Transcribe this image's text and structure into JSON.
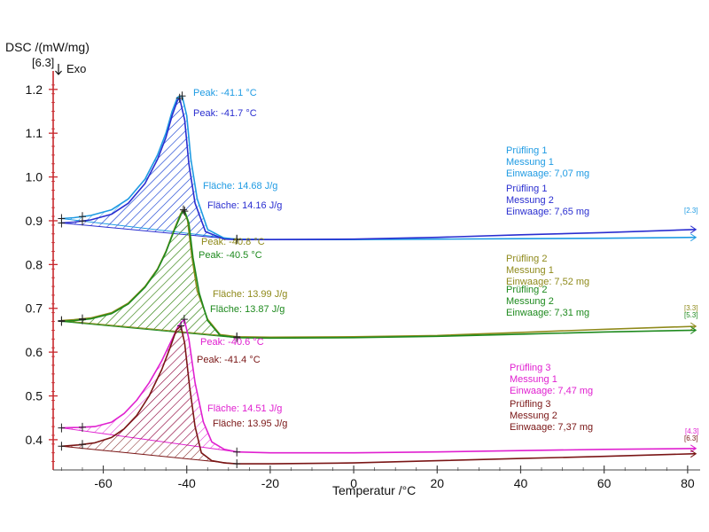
{
  "chart_data": {
    "type": "line",
    "ylabel": "DSC /(mW/mg)",
    "xlabel": "Temperatur /°C",
    "segment_marker": "[6.3]",
    "exo_label": "Exo",
    "xlim": [
      -72,
      83
    ],
    "ylim": [
      0.335,
      1.23
    ],
    "xticks": [
      -60,
      -40,
      -20,
      0,
      20,
      40,
      60,
      80
    ],
    "yticks": [
      0.4,
      0.5,
      0.6,
      0.7,
      0.8,
      0.9,
      1.0,
      1.1,
      1.2
    ],
    "xtick_labels": [
      "-60",
      "-40",
      "-20",
      "0",
      "20",
      "40",
      "60",
      "80"
    ],
    "ytick_labels": [
      "0.4",
      "0.5",
      "0.6",
      "0.7",
      "0.8",
      "0.9",
      "1.0",
      "1.1",
      "1.2"
    ],
    "colors": {
      "axis": "#c8282d"
    },
    "series": [
      {
        "name": "Prüfling 1 Messung 1",
        "color": "#1f9be3",
        "x": [
          -70,
          -67,
          -63,
          -58,
          -54,
          -50,
          -47,
          -45,
          -43.5,
          -42.2,
          -41.1,
          -40,
          -39,
          -37.5,
          -35,
          -31,
          -28,
          -20,
          0,
          20,
          40,
          60,
          82
        ],
        "values": [
          0.905,
          0.907,
          0.912,
          0.925,
          0.95,
          0.995,
          1.05,
          1.1,
          1.15,
          1.182,
          1.185,
          1.14,
          1.04,
          0.95,
          0.88,
          0.86,
          0.858,
          0.857,
          0.857,
          0.858,
          0.859,
          0.86,
          0.862
        ],
        "label_lines": [
          "Prüfling 1",
          "Messung 1",
          "Einwaage: 7,07 mg"
        ],
        "peak_label": "Peak: -41.1 °C",
        "area_label": "Fläche: 14.68 J/g",
        "end_marker": "[2.3]",
        "hatch_x": [
          -70,
          -28
        ]
      },
      {
        "name": "Prüfling 1 Messung 2",
        "color": "#2a2ed0",
        "x": [
          -70,
          -67,
          -63,
          -58,
          -54,
          -50,
          -47,
          -45,
          -43.5,
          -42.2,
          -41.7,
          -40.5,
          -39.5,
          -38,
          -35.5,
          -31,
          -28,
          -20,
          0,
          20,
          40,
          60,
          82
        ],
        "values": [
          0.895,
          0.897,
          0.902,
          0.915,
          0.94,
          0.985,
          1.04,
          1.09,
          1.14,
          1.175,
          1.18,
          1.13,
          1.03,
          0.94,
          0.875,
          0.858,
          0.857,
          0.857,
          0.858,
          0.862,
          0.868,
          0.873,
          0.88
        ],
        "label_lines": [
          "Prüfling 1",
          "Messung 2",
          "Einwaage: 7,65 mg"
        ],
        "peak_label": "Peak: -41.7 °C",
        "area_label": "Fläche: 14.16 J/g",
        "end_marker": "",
        "hatch_x": [
          -70,
          -28
        ]
      },
      {
        "name": "Prüfling 2 Messung 1",
        "color": "#8f8a1b",
        "x": [
          -70,
          -67,
          -63,
          -58,
          -54,
          -50,
          -47,
          -45,
          -43,
          -41.5,
          -40.8,
          -39.8,
          -38.8,
          -37.5,
          -35,
          -32,
          -28,
          -20,
          0,
          20,
          40,
          60,
          82
        ],
        "values": [
          0.672,
          0.674,
          0.678,
          0.69,
          0.712,
          0.75,
          0.79,
          0.83,
          0.88,
          0.915,
          0.925,
          0.9,
          0.82,
          0.74,
          0.675,
          0.64,
          0.635,
          0.634,
          0.635,
          0.638,
          0.645,
          0.652,
          0.659
        ],
        "label_lines": [
          "Prüfling 2",
          "Messung 1",
          "Einwaage: 7,52 mg"
        ],
        "peak_label": "Peak: -40.8 °C",
        "area_label": "Fläche: 13.99 J/g",
        "end_marker": "[3.3]",
        "hatch_x": [
          -70,
          -28
        ]
      },
      {
        "name": "Prüfling 2 Messung 2",
        "color": "#1e8a1e",
        "x": [
          -70,
          -67,
          -63,
          -58,
          -54,
          -50,
          -47,
          -45,
          -43,
          -41.2,
          -40.5,
          -39.5,
          -38.5,
          -37,
          -35,
          -32,
          -28,
          -20,
          0,
          20,
          40,
          60,
          82
        ],
        "values": [
          0.67,
          0.672,
          0.676,
          0.688,
          0.71,
          0.748,
          0.788,
          0.828,
          0.878,
          0.918,
          0.922,
          0.895,
          0.815,
          0.735,
          0.672,
          0.638,
          0.633,
          0.632,
          0.633,
          0.636,
          0.641,
          0.646,
          0.65
        ],
        "label_lines": [
          "Prüfling 2",
          "Messung 2",
          "Einwaage: 7,31 mg"
        ],
        "peak_label": "Peak: -40.5 °C",
        "area_label": "Fläche: 13.87 J/g",
        "end_marker": "[5.3]",
        "hatch_x": [
          -70,
          -28
        ]
      },
      {
        "name": "Prüfling 3 Messung 1",
        "color": "#e020d0",
        "x": [
          -70,
          -66,
          -62,
          -58,
          -55,
          -52,
          -49,
          -46,
          -44,
          -42,
          -40.6,
          -39.5,
          -38,
          -36,
          -34,
          -31,
          -28,
          -20,
          0,
          20,
          40,
          60,
          82
        ],
        "values": [
          0.427,
          0.428,
          0.43,
          0.44,
          0.46,
          0.49,
          0.53,
          0.58,
          0.62,
          0.66,
          0.675,
          0.63,
          0.53,
          0.44,
          0.395,
          0.378,
          0.372,
          0.37,
          0.37,
          0.372,
          0.375,
          0.378,
          0.38
        ],
        "label_lines": [
          "Prüfling 3",
          "Messung 1",
          "Einwaage: 7,47 mg"
        ],
        "peak_label": "Peak: -40.6 °C",
        "area_label": "Fläche: 14.51 J/g",
        "end_marker": "[4.3]",
        "hatch_x": [
          -70,
          -28
        ]
      },
      {
        "name": "Prüfling 3 Messung 2",
        "color": "#7a1616",
        "x": [
          -70,
          -66,
          -62,
          -58,
          -55,
          -52,
          -49,
          -46,
          -44,
          -42.5,
          -41.4,
          -40.5,
          -39.3,
          -38,
          -36.5,
          -34,
          -31,
          -28,
          -20,
          0,
          20,
          40,
          60,
          82
        ],
        "values": [
          0.385,
          0.388,
          0.393,
          0.405,
          0.425,
          0.455,
          0.5,
          0.56,
          0.61,
          0.65,
          0.66,
          0.62,
          0.52,
          0.43,
          0.37,
          0.352,
          0.347,
          0.345,
          0.345,
          0.347,
          0.352,
          0.357,
          0.362,
          0.368
        ],
        "label_lines": [
          "Prüfling 3",
          "Messung 2",
          "Einwaage: 7,37 mg"
        ],
        "peak_label": "Peak: -41.4 °C",
        "area_label": "Fläche: 13.95 J/g",
        "end_marker": "[6.3]",
        "hatch_x": [
          -70,
          -28
        ]
      }
    ]
  }
}
